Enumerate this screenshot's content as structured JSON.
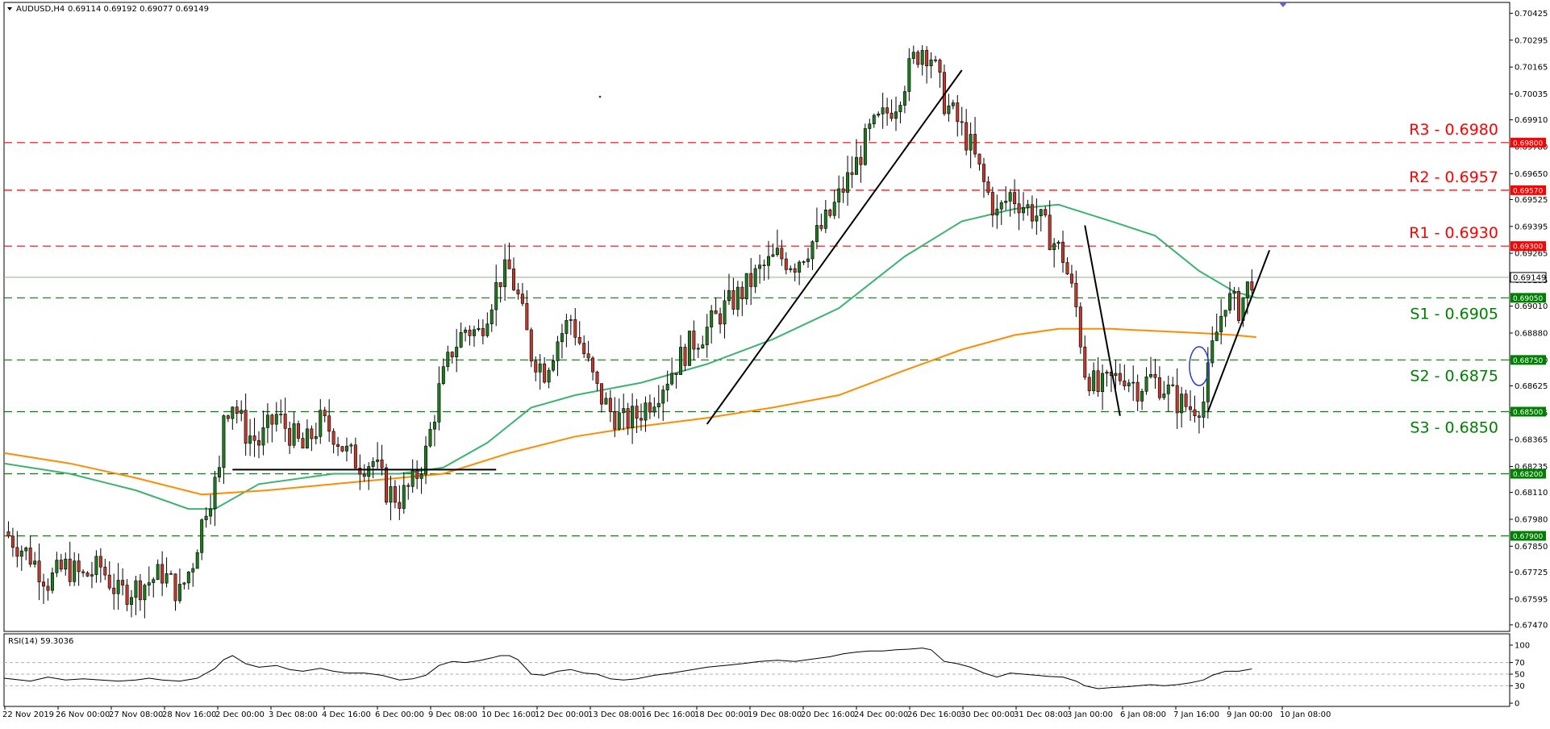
{
  "header": {
    "symbol": "AUDUSD,H4",
    "ohlc": "0.69114 0.69192 0.69077 0.69149"
  },
  "rsi_header": {
    "text": "RSI(14) 59.3036"
  },
  "colors": {
    "bull": "#1e7a1e",
    "bear": "#c0392b",
    "resistance": "#ff0000",
    "support": "#008000",
    "ma_fast": "#3cb371",
    "ma_slow": "#ff8c00",
    "trendline": "#000000",
    "current_price": "#6b8e6b"
  },
  "chart_data": [
    {
      "type": "candlestick",
      "title": "AUDUSD,H4",
      "y_ticks": [
        "0.70425",
        "0.70295",
        "0.70165",
        "0.70035",
        "0.69910",
        "0.69780",
        "0.69650",
        "0.69525",
        "0.69395",
        "0.69265",
        "0.69135",
        "0.69010",
        "0.68880",
        "0.68750",
        "0.68625",
        "0.68495",
        "0.68365",
        "0.68235",
        "0.68110",
        "0.67980",
        "0.67850",
        "0.67725",
        "0.67595",
        "0.67470"
      ],
      "x_ticks": [
        "22 Nov 2019",
        "26 Nov 00:00",
        "27 Nov 08:00",
        "28 Nov 16:00",
        "2 Dec 00:00",
        "3 Dec 08:00",
        "4 Dec 16:00",
        "6 Dec 00:00",
        "9 Dec 08:00",
        "10 Dec 16:00",
        "12 Dec 00:00",
        "13 Dec 08:00",
        "16 Dec 16:00",
        "18 Dec 00:00",
        "19 Dec 08:00",
        "20 Dec 16:00",
        "24 Dec 00:00",
        "26 Dec 16:00",
        "30 Dec 00:00",
        "31 Dec 08:00",
        "3 Jan 00:00",
        "6 Jan 08:00",
        "7 Jan 16:00",
        "9 Jan 00:00",
        "10 Jan 08:00"
      ],
      "ylim": [
        0.6745,
        0.7045
      ],
      "current_price": {
        "value": 0.69149,
        "label": "0.69149"
      },
      "resistance_levels": [
        {
          "name": "R3 - 0.6980",
          "value": 0.698,
          "badge": "0.69800"
        },
        {
          "name": "R2 - 0.6957",
          "value": 0.6957,
          "badge": "0.69570"
        },
        {
          "name": "R1 - 0.6930",
          "value": 0.693,
          "badge": "0.69300"
        }
      ],
      "support_levels": [
        {
          "name": "S1 - 0.6905",
          "value": 0.6905,
          "badge": "0.69050"
        },
        {
          "name": "S2 - 0.6875",
          "value": 0.6875,
          "badge": "0.68750"
        },
        {
          "name": "S3 - 0.6850",
          "value": 0.685,
          "badge": "0.68500"
        },
        {
          "name": "",
          "value": 0.682,
          "badge": "0.68200"
        },
        {
          "name": "",
          "value": 0.679,
          "badge": "0.67900"
        }
      ],
      "close_path": [
        [
          0,
          0.6792
        ],
        [
          6,
          0.678
        ],
        [
          10,
          0.6768
        ],
        [
          14,
          0.6775
        ],
        [
          18,
          0.677
        ],
        [
          22,
          0.6775
        ],
        [
          26,
          0.6762
        ],
        [
          30,
          0.6765
        ],
        [
          33,
          0.6768
        ],
        [
          36,
          0.6772
        ],
        [
          40,
          0.6762
        ],
        [
          43,
          0.6778
        ],
        [
          46,
          0.6805
        ],
        [
          49,
          0.682
        ],
        [
          50,
          0.685
        ],
        [
          52,
          0.6855
        ],
        [
          55,
          0.684
        ],
        [
          58,
          0.6835
        ],
        [
          62,
          0.6848
        ],
        [
          65,
          0.684
        ],
        [
          68,
          0.6832
        ],
        [
          72,
          0.6845
        ],
        [
          75,
          0.684
        ],
        [
          78,
          0.683
        ],
        [
          81,
          0.6825
        ],
        [
          84,
          0.6826
        ],
        [
          87,
          0.6812
        ],
        [
          90,
          0.6808
        ],
        [
          93,
          0.6815
        ],
        [
          96,
          0.683
        ],
        [
          99,
          0.686
        ],
        [
          102,
          0.688
        ],
        [
          105,
          0.689
        ],
        [
          108,
          0.6888
        ],
        [
          111,
          0.6905
        ],
        [
          113,
          0.6915
        ],
        [
          115,
          0.6918
        ],
        [
          117,
          0.6905
        ],
        [
          120,
          0.6878
        ],
        [
          123,
          0.687
        ],
        [
          126,
          0.6885
        ],
        [
          129,
          0.6895
        ],
        [
          132,
          0.6878
        ],
        [
          135,
          0.686
        ],
        [
          138,
          0.685
        ],
        [
          141,
          0.6845
        ],
        [
          144,
          0.6848
        ],
        [
          148,
          0.6858
        ],
        [
          152,
          0.687
        ],
        [
          156,
          0.6882
        ],
        [
          160,
          0.689
        ],
        [
          164,
          0.69
        ],
        [
          168,
          0.6908
        ],
        [
          172,
          0.6918
        ],
        [
          176,
          0.6925
        ],
        [
          180,
          0.6922
        ],
        [
          184,
          0.6932
        ],
        [
          188,
          0.6945
        ],
        [
          191,
          0.6958
        ],
        [
          194,
          0.697
        ],
        [
          197,
          0.6985
        ],
        [
          200,
          0.6992
        ],
        [
          203,
          0.7
        ],
        [
          205,
          0.701
        ],
        [
          207,
          0.702
        ],
        [
          209,
          0.7026
        ],
        [
          211,
          0.7022
        ],
        [
          214,
          0.7
        ],
        [
          217,
          0.699
        ],
        [
          220,
          0.6978
        ],
        [
          223,
          0.696
        ],
        [
          226,
          0.6945
        ],
        [
          229,
          0.6955
        ],
        [
          232,
          0.695
        ],
        [
          235,
          0.6945
        ],
        [
          238,
          0.6935
        ],
        [
          241,
          0.6925
        ],
        [
          244,
          0.69
        ],
        [
          246,
          0.687
        ],
        [
          249,
          0.686
        ],
        [
          252,
          0.6865
        ],
        [
          255,
          0.6868
        ],
        [
          258,
          0.6862
        ],
        [
          261,
          0.6866
        ],
        [
          264,
          0.6862
        ],
        [
          267,
          0.6855
        ],
        [
          270,
          0.6852
        ],
        [
          273,
          0.6855
        ],
        [
          275,
          0.688
        ],
        [
          278,
          0.6905
        ],
        [
          281,
          0.69
        ],
        [
          284,
          0.6915
        ]
      ],
      "series": [
        {
          "name": "",
          "type": "ma_fast",
          "points": [
            [
              0,
              0.6825
            ],
            [
              15,
              0.682
            ],
            [
              30,
              0.6812
            ],
            [
              42,
              0.6803
            ],
            [
              48,
              0.6803
            ],
            [
              58,
              0.6815
            ],
            [
              75,
              0.682
            ],
            [
              90,
              0.682
            ],
            [
              100,
              0.6823
            ],
            [
              110,
              0.6835
            ],
            [
              120,
              0.6852
            ],
            [
              130,
              0.6858
            ],
            [
              145,
              0.6864
            ],
            [
              160,
              0.6873
            ],
            [
              175,
              0.6885
            ],
            [
              190,
              0.69
            ],
            [
              205,
              0.6925
            ],
            [
              218,
              0.6942
            ],
            [
              230,
              0.6948
            ],
            [
              240,
              0.695
            ],
            [
              252,
              0.6942
            ],
            [
              262,
              0.6935
            ],
            [
              272,
              0.6918
            ],
            [
              280,
              0.6908
            ],
            [
              285,
              0.6905
            ]
          ]
        },
        {
          "name": "",
          "type": "ma_slow",
          "points": [
            [
              0,
              0.683
            ],
            [
              15,
              0.6825
            ],
            [
              30,
              0.6818
            ],
            [
              45,
              0.681
            ],
            [
              60,
              0.6812
            ],
            [
              75,
              0.6815
            ],
            [
              90,
              0.6818
            ],
            [
              100,
              0.682
            ],
            [
              115,
              0.683
            ],
            [
              130,
              0.6838
            ],
            [
              145,
              0.6843
            ],
            [
              160,
              0.6847
            ],
            [
              175,
              0.6852
            ],
            [
              190,
              0.6858
            ],
            [
              205,
              0.687
            ],
            [
              218,
              0.688
            ],
            [
              230,
              0.6887
            ],
            [
              240,
              0.689
            ],
            [
              252,
              0.689
            ],
            [
              262,
              0.6889
            ],
            [
              272,
              0.6888
            ],
            [
              280,
              0.6887
            ],
            [
              285,
              0.6886
            ]
          ]
        }
      ],
      "trendlines": [
        {
          "from": [
            160,
            0.6844
          ],
          "to": [
            218,
            0.7015
          ]
        },
        {
          "from": [
            246,
            0.694
          ],
          "to": [
            254,
            0.6848
          ]
        },
        {
          "from": [
            274,
            0.685
          ],
          "to": [
            288,
            0.6928
          ]
        }
      ],
      "horizontal_segment": {
        "from": [
          52,
          0.6822
        ],
        "to": [
          112,
          0.6822
        ]
      },
      "marker_ellipse": {
        "center": [
          272,
          0.6872
        ]
      },
      "x_domain": [
        0,
        290
      ]
    },
    {
      "type": "line",
      "title": "RSI(14) 59.3036",
      "y_ticks": [
        "100",
        "70",
        "50",
        "30",
        "0"
      ],
      "ylim": [
        0,
        100
      ],
      "levels": [
        70,
        50,
        30
      ],
      "values": [
        [
          0,
          43
        ],
        [
          6,
          38
        ],
        [
          10,
          45
        ],
        [
          14,
          40
        ],
        [
          18,
          42
        ],
        [
          22,
          40
        ],
        [
          26,
          38
        ],
        [
          30,
          40
        ],
        [
          33,
          43
        ],
        [
          36,
          40
        ],
        [
          40,
          38
        ],
        [
          44,
          43
        ],
        [
          48,
          60
        ],
        [
          50,
          75
        ],
        [
          52,
          82
        ],
        [
          55,
          68
        ],
        [
          58,
          62
        ],
        [
          62,
          65
        ],
        [
          65,
          58
        ],
        [
          68,
          55
        ],
        [
          72,
          60
        ],
        [
          75,
          55
        ],
        [
          78,
          52
        ],
        [
          82,
          52
        ],
        [
          86,
          48
        ],
        [
          90,
          40
        ],
        [
          93,
          42
        ],
        [
          96,
          48
        ],
        [
          99,
          65
        ],
        [
          102,
          72
        ],
        [
          105,
          70
        ],
        [
          108,
          73
        ],
        [
          111,
          78
        ],
        [
          113,
          82
        ],
        [
          115,
          82
        ],
        [
          117,
          75
        ],
        [
          120,
          50
        ],
        [
          123,
          48
        ],
        [
          126,
          55
        ],
        [
          129,
          58
        ],
        [
          132,
          52
        ],
        [
          135,
          50
        ],
        [
          138,
          42
        ],
        [
          141,
          40
        ],
        [
          144,
          42
        ],
        [
          148,
          48
        ],
        [
          152,
          52
        ],
        [
          156,
          57
        ],
        [
          160,
          62
        ],
        [
          164,
          65
        ],
        [
          168,
          68
        ],
        [
          172,
          72
        ],
        [
          176,
          74
        ],
        [
          180,
          72
        ],
        [
          184,
          76
        ],
        [
          188,
          80
        ],
        [
          191,
          85
        ],
        [
          194,
          88
        ],
        [
          197,
          90
        ],
        [
          200,
          90
        ],
        [
          203,
          92
        ],
        [
          206,
          93
        ],
        [
          209,
          95
        ],
        [
          211,
          92
        ],
        [
          214,
          72
        ],
        [
          217,
          68
        ],
        [
          220,
          62
        ],
        [
          223,
          52
        ],
        [
          226,
          45
        ],
        [
          229,
          52
        ],
        [
          232,
          50
        ],
        [
          235,
          48
        ],
        [
          238,
          46
        ],
        [
          241,
          45
        ],
        [
          244,
          38
        ],
        [
          246,
          30
        ],
        [
          249,
          25
        ],
        [
          252,
          27
        ],
        [
          255,
          28
        ],
        [
          258,
          30
        ],
        [
          261,
          32
        ],
        [
          264,
          30
        ],
        [
          267,
          32
        ],
        [
          270,
          35
        ],
        [
          273,
          40
        ],
        [
          275,
          48
        ],
        [
          278,
          55
        ],
        [
          281,
          55
        ],
        [
          284,
          59
        ]
      ]
    }
  ]
}
